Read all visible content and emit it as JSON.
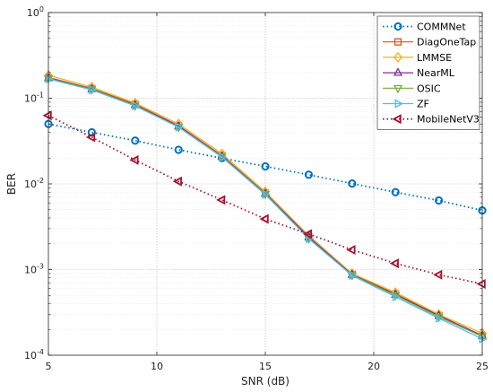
{
  "chart_data": {
    "type": "line",
    "xlabel": "SNR (dB)",
    "ylabel": "BER",
    "xlim": [
      5,
      25
    ],
    "ylim": [
      0.0001,
      1
    ],
    "yscale": "log",
    "grid": true,
    "legend_position": "top-right",
    "x_ticks": [
      5,
      10,
      15,
      20,
      25
    ],
    "y_ticks": [
      {
        "value": 0.0001,
        "base": "10",
        "exp": "-4"
      },
      {
        "value": 0.001,
        "base": "10",
        "exp": "-3"
      },
      {
        "value": 0.01,
        "base": "10",
        "exp": "-2"
      },
      {
        "value": 0.1,
        "base": "10",
        "exp": "-1"
      },
      {
        "value": 1,
        "base": "10",
        "exp": "0"
      }
    ],
    "x": [
      5,
      7,
      9,
      11,
      13,
      15,
      17,
      19,
      21,
      23,
      25
    ],
    "series": [
      {
        "name": "COMMNet",
        "color": "#0072BD",
        "marker": "circle",
        "dash": "dotted",
        "values": [
          0.05,
          0.04,
          0.032,
          0.025,
          0.02,
          0.016,
          0.0128,
          0.0101,
          0.008,
          0.0064,
          0.0049
        ]
      },
      {
        "name": "DiagOneTap",
        "color": "#D95319",
        "marker": "square",
        "dash": "solid",
        "values": [
          0.175,
          0.13,
          0.085,
          0.048,
          0.0215,
          0.0078,
          0.0024,
          0.00088,
          0.00052,
          0.00029,
          0.00017
        ]
      },
      {
        "name": "LMMSE",
        "color": "#EDB120",
        "marker": "diamond",
        "dash": "solid",
        "values": [
          0.185,
          0.135,
          0.088,
          0.05,
          0.0225,
          0.0081,
          0.0025,
          0.0009,
          0.00054,
          0.0003,
          0.00018
        ]
      },
      {
        "name": "NearML",
        "color": "#7E2F8E",
        "marker": "triangle-up",
        "dash": "solid",
        "values": [
          0.172,
          0.128,
          0.083,
          0.047,
          0.021,
          0.0077,
          0.0024,
          0.00087,
          0.00051,
          0.00029,
          0.00017
        ]
      },
      {
        "name": "OSIC",
        "color": "#77AC30",
        "marker": "triangle-down",
        "dash": "solid",
        "values": [
          0.17,
          0.127,
          0.082,
          0.046,
          0.0208,
          0.0076,
          0.0023,
          0.00086,
          0.0005,
          0.00028,
          0.000165
        ]
      },
      {
        "name": "ZF",
        "color": "#4DBEEE",
        "marker": "triangle-right",
        "dash": "solid",
        "values": [
          0.168,
          0.125,
          0.081,
          0.046,
          0.0205,
          0.0075,
          0.0023,
          0.00085,
          0.00048,
          0.00027,
          0.000155
        ]
      },
      {
        "name": "MobileNetV3",
        "color": "#A2142F",
        "marker": "triangle-left",
        "dash": "dotted",
        "values": [
          0.063,
          0.035,
          0.019,
          0.0107,
          0.0065,
          0.0039,
          0.0026,
          0.0017,
          0.00118,
          0.00087,
          0.00068
        ]
      }
    ]
  }
}
